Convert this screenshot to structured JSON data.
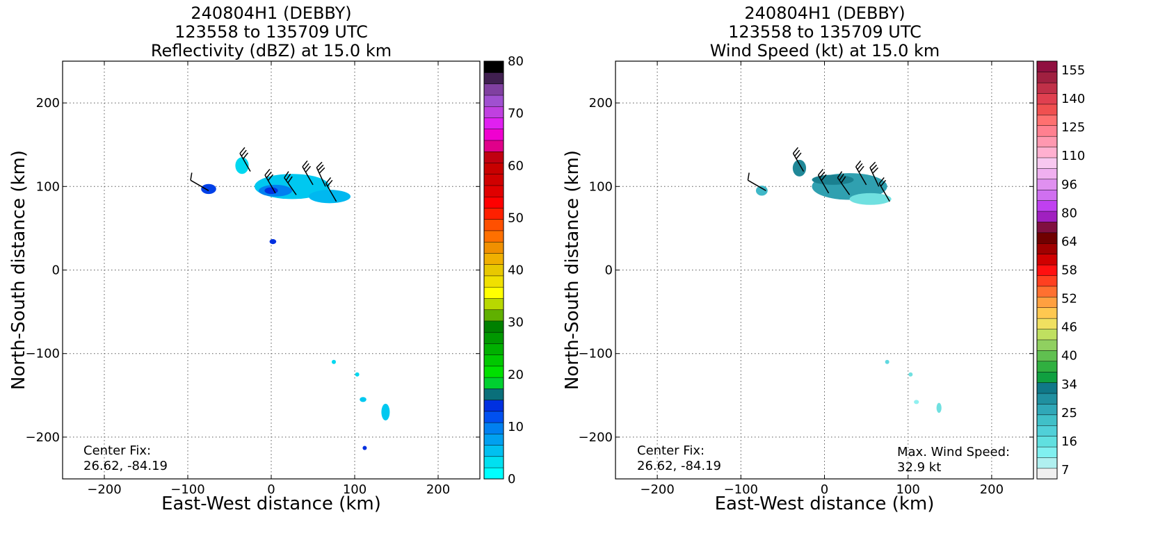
{
  "chart_data": [
    {
      "type": "heatmap",
      "title": [
        "240804H1 (DEBBY)",
        "123558 to 135709 UTC",
        "Reflectivity (dBZ) at 15.0 km"
      ],
      "xlabel": "East-West distance (km)",
      "ylabel": "North-South distance (km)",
      "xlim": [
        -250,
        250
      ],
      "ylim": [
        -250,
        250
      ],
      "xticks": [
        "−200",
        "−100",
        "0",
        "100",
        "200"
      ],
      "yticks": [
        "200",
        "100",
        "0",
        "−100",
        "−200"
      ],
      "grid": true,
      "annotations": [
        "Center Fix:",
        "26.62, -84.19"
      ],
      "colorbar": {
        "min": 0,
        "max": 80,
        "ticks": [
          "80",
          "70",
          "60",
          "50",
          "40",
          "30",
          "20",
          "10",
          "0"
        ],
        "colors": [
          "#00ffff",
          "#00e0f0",
          "#00c0f0",
          "#00a0f0",
          "#0080f0",
          "#0050f0",
          "#0030e0",
          "#0a6f7a",
          "#00d030",
          "#00e000",
          "#00c800",
          "#00b000",
          "#009800",
          "#008000",
          "#60b000",
          "#b8d800",
          "#ffff00",
          "#f0e000",
          "#e8c800",
          "#f0b000",
          "#f09000",
          "#ff7000",
          "#ff5000",
          "#ff2000",
          "#ff0000",
          "#e00000",
          "#d00000",
          "#c80000",
          "#c00010",
          "#e0008a",
          "#f000d0",
          "#e020f0",
          "#c040e0",
          "#a050d0",
          "#8040a0",
          "#402050",
          "#000000"
        ]
      },
      "blobs": [
        {
          "x": -75,
          "y": 97,
          "rx": 9,
          "ry": 6,
          "color": "#0040e8"
        },
        {
          "x": -35,
          "y": 125,
          "rx": 8,
          "ry": 10,
          "color": "#00d8f0"
        },
        {
          "x": 25,
          "y": 100,
          "rx": 45,
          "ry": 15,
          "color": "#00c8f0"
        },
        {
          "x": 70,
          "y": 88,
          "rx": 25,
          "ry": 8,
          "color": "#00b8f0"
        },
        {
          "x": 5,
          "y": 95,
          "rx": 20,
          "ry": 7,
          "color": "#0080f0"
        },
        {
          "x": 0,
          "y": 95,
          "rx": 8,
          "ry": 4,
          "color": "#0030e0"
        },
        {
          "x": 2,
          "y": 34,
          "rx": 4,
          "ry": 3,
          "color": "#0030e0"
        },
        {
          "x": 75,
          "y": -110,
          "rx": 2,
          "ry": 2,
          "color": "#00d8f0"
        },
        {
          "x": 103,
          "y": -125,
          "rx": 2,
          "ry": 2,
          "color": "#00d8f0"
        },
        {
          "x": 110,
          "y": -155,
          "rx": 4,
          "ry": 3,
          "color": "#00c8f0"
        },
        {
          "x": 137,
          "y": -170,
          "rx": 5,
          "ry": 10,
          "color": "#00c8f0"
        },
        {
          "x": 112,
          "y": -213,
          "rx": 2,
          "ry": 2,
          "color": "#0030e0"
        }
      ],
      "barbs": [
        {
          "x": -75,
          "y": 95,
          "dir": 300,
          "n": 1
        },
        {
          "x": -25,
          "y": 118,
          "dir": 330,
          "n": 3
        },
        {
          "x": 5,
          "y": 92,
          "dir": 330,
          "n": 3
        },
        {
          "x": 30,
          "y": 90,
          "dir": 325,
          "n": 3
        },
        {
          "x": 50,
          "y": 102,
          "dir": 330,
          "n": 3
        },
        {
          "x": 65,
          "y": 100,
          "dir": 335,
          "n": 3
        },
        {
          "x": 78,
          "y": 82,
          "dir": 330,
          "n": 2
        }
      ]
    },
    {
      "type": "heatmap",
      "title": [
        "240804H1 (DEBBY)",
        "123558 to 135709 UTC",
        "Wind Speed (kt) at 15.0 km"
      ],
      "xlabel": "East-West distance (km)",
      "ylabel": "North-South distance (km)",
      "xlim": [
        -250,
        250
      ],
      "ylim": [
        -250,
        250
      ],
      "xticks": [
        "−200",
        "−100",
        "0",
        "100",
        "200"
      ],
      "yticks": [
        "200",
        "100",
        "0",
        "−100",
        "−200"
      ],
      "grid": true,
      "annotations": [
        "Center Fix:",
        "26.62, -84.19",
        "Max. Wind Speed:",
        "32.9 kt"
      ],
      "colorbar": {
        "min": 5,
        "max": 160,
        "ticks": [
          "155",
          "140",
          "125",
          "110",
          "96",
          "80",
          "64",
          "58",
          "52",
          "46",
          "40",
          "34",
          "25",
          "16",
          "7"
        ],
        "colors": [
          "#f0f0f0",
          "#b0f0f0",
          "#80f0f0",
          "#60e0e0",
          "#50d0d8",
          "#40c0c8",
          "#30a8b8",
          "#2090a0",
          "#107888",
          "#10a040",
          "#30b040",
          "#60c050",
          "#90d060",
          "#c0e060",
          "#f0e060",
          "#ffc850",
          "#ffa040",
          "#ff7030",
          "#ff4020",
          "#ff1010",
          "#d00000",
          "#a00000",
          "#700000",
          "#801040",
          "#a020c0",
          "#c040f0",
          "#d070f0",
          "#e090f0",
          "#f0b0f0",
          "#f8c8f0",
          "#ffb0d0",
          "#ff98b0",
          "#ff8090",
          "#ff7070",
          "#f05050",
          "#e04050",
          "#c03048",
          "#a02040",
          "#901040"
        ]
      },
      "blobs": [
        {
          "x": -75,
          "y": 95,
          "rx": 7,
          "ry": 6,
          "color": "#40b8c8"
        },
        {
          "x": -30,
          "y": 122,
          "rx": 8,
          "ry": 10,
          "color": "#208898"
        },
        {
          "x": 30,
          "y": 100,
          "rx": 45,
          "ry": 16,
          "color": "#30a0b0"
        },
        {
          "x": 55,
          "y": 85,
          "rx": 25,
          "ry": 7,
          "color": "#70e0e0"
        },
        {
          "x": 10,
          "y": 108,
          "rx": 25,
          "ry": 6,
          "color": "#1a8090"
        },
        {
          "x": 75,
          "y": -110,
          "rx": 2,
          "ry": 2,
          "color": "#60d8e0"
        },
        {
          "x": 103,
          "y": -125,
          "rx": 2,
          "ry": 2,
          "color": "#70e0e0"
        },
        {
          "x": 110,
          "y": -158,
          "rx": 3,
          "ry": 2,
          "color": "#90f0f0"
        },
        {
          "x": 137,
          "y": -165,
          "rx": 3,
          "ry": 6,
          "color": "#70e0e0"
        }
      ],
      "barbs": [
        {
          "x": -70,
          "y": 95,
          "dir": 300,
          "n": 1
        },
        {
          "x": -25,
          "y": 118,
          "dir": 330,
          "n": 3
        },
        {
          "x": 5,
          "y": 92,
          "dir": 330,
          "n": 3
        },
        {
          "x": 30,
          "y": 90,
          "dir": 325,
          "n": 3
        },
        {
          "x": 50,
          "y": 102,
          "dir": 330,
          "n": 3
        },
        {
          "x": 65,
          "y": 100,
          "dir": 335,
          "n": 3
        },
        {
          "x": 78,
          "y": 82,
          "dir": 330,
          "n": 2
        }
      ]
    }
  ]
}
